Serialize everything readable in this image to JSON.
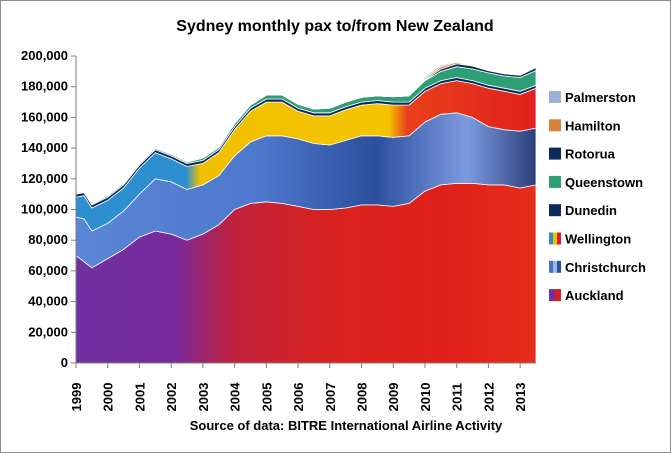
{
  "chart_data": {
    "type": "area",
    "stacked": true,
    "title": "Sydney monthly pax to/from New Zealand",
    "source": "Source of data: BITRE International Airline Activity",
    "xlabel": "",
    "ylabel": "",
    "ylim": [
      0,
      200000
    ],
    "yticks": [
      0,
      20000,
      40000,
      60000,
      80000,
      100000,
      120000,
      140000,
      160000,
      180000,
      200000
    ],
    "ytick_labels": [
      "0",
      "20,000",
      "40,000",
      "60,000",
      "80,000",
      "100,000",
      "120,000",
      "140,000",
      "160,000",
      "180,000",
      "200,000"
    ],
    "xlim": [
      1999.0,
      2013.5
    ],
    "xtick_labels": [
      "1999",
      "2000",
      "2001",
      "2002",
      "2003",
      "2004",
      "2005",
      "2006",
      "2007",
      "2008",
      "2009",
      "2010",
      "2011",
      "2012",
      "2013"
    ],
    "grid": false,
    "legend_position": "right",
    "x": [
      1999.0,
      1999.25,
      1999.5,
      2000.0,
      2000.5,
      2001.0,
      2001.5,
      2002.0,
      2002.5,
      2003.0,
      2003.5,
      2004.0,
      2004.5,
      2005.0,
      2005.5,
      2006.0,
      2006.5,
      2007.0,
      2007.5,
      2008.0,
      2008.5,
      2009.0,
      2009.5,
      2010.0,
      2010.5,
      2011.0,
      2011.5,
      2012.0,
      2012.5,
      2013.0,
      2013.5
    ],
    "series": [
      {
        "name": "Auckland",
        "values": [
          70000,
          66000,
          62000,
          68000,
          74000,
          82000,
          86000,
          84000,
          80000,
          84000,
          90000,
          100000,
          104000,
          105000,
          104000,
          102000,
          100000,
          100000,
          101000,
          103000,
          103000,
          102000,
          104000,
          112000,
          116000,
          117000,
          117000,
          116000,
          116000,
          114000,
          116000
        ]
      },
      {
        "name": "Christchurch",
        "values": [
          25000,
          28000,
          24000,
          23000,
          25000,
          28000,
          34000,
          34000,
          33000,
          32000,
          32000,
          35000,
          40000,
          43000,
          44000,
          44000,
          43000,
          42000,
          44000,
          45000,
          45000,
          45000,
          44000,
          45000,
          46000,
          46000,
          43000,
          38000,
          36000,
          37000,
          37000
        ]
      },
      {
        "name": "Wellington",
        "values": [
          13000,
          15000,
          15000,
          15000,
          15000,
          17000,
          17000,
          15000,
          15000,
          14000,
          15000,
          17000,
          20000,
          22000,
          22000,
          18000,
          18000,
          19000,
          20000,
          20000,
          21000,
          21000,
          20000,
          20000,
          20000,
          21000,
          22000,
          25000,
          25000,
          24000,
          26000
        ]
      },
      {
        "name": "Dunedin",
        "values": [
          2000,
          2000,
          2000,
          2000,
          2000,
          2000,
          2000,
          2000,
          2000,
          2000,
          2000,
          2000,
          2000,
          2000,
          2000,
          2000,
          2000,
          2000,
          2000,
          2000,
          2000,
          2000,
          2000,
          2000,
          2000,
          2000,
          2000,
          2000,
          2000,
          2000,
          2000
        ]
      },
      {
        "name": "Queenstown",
        "values": [
          500,
          500,
          500,
          1000,
          1000,
          1000,
          1000,
          1000,
          1000,
          1500,
          1500,
          2000,
          2000,
          2500,
          2500,
          2500,
          2500,
          3000,
          3000,
          3000,
          3000,
          3500,
          4000,
          5000,
          6000,
          7000,
          7500,
          8000,
          8000,
          9000,
          9500
        ]
      },
      {
        "name": "Rotorua",
        "values": [
          0,
          0,
          0,
          0,
          0,
          0,
          0,
          0,
          0,
          0,
          0,
          0,
          0,
          0,
          0,
          0,
          0,
          0,
          0,
          0,
          0,
          0,
          0,
          500,
          1500,
          2000,
          2000,
          1500,
          1500,
          1500,
          2000
        ]
      },
      {
        "name": "Hamilton",
        "values": [
          0,
          0,
          0,
          0,
          0,
          0,
          0,
          0,
          0,
          0,
          0,
          0,
          0,
          0,
          0,
          0,
          0,
          0,
          0,
          0,
          0,
          0,
          0,
          1000,
          1500,
          1000,
          0,
          0,
          0,
          0,
          0
        ]
      },
      {
        "name": "Palmerston",
        "values": [
          0,
          0,
          0,
          0,
          0,
          0,
          0,
          0,
          0,
          0,
          0,
          0,
          0,
          0,
          0,
          0,
          0,
          0,
          0,
          0,
          0,
          0,
          0,
          1000,
          1000,
          500,
          0,
          0,
          0,
          0,
          0
        ]
      }
    ],
    "colors": {
      "Auckland": "#d81e1e",
      "Auckland_early": "#7030a0",
      "Christchurch": "#4a72c4",
      "Wellington": "#f0c000",
      "Wellington_early": "#2e8fd0",
      "Dunedin": "#0c2a5c",
      "Queenstown": "#2e9e74",
      "Rotorua": "#0c2a5c",
      "Hamilton": "#d8823a",
      "Palmerston": "#9ab0d6"
    }
  }
}
